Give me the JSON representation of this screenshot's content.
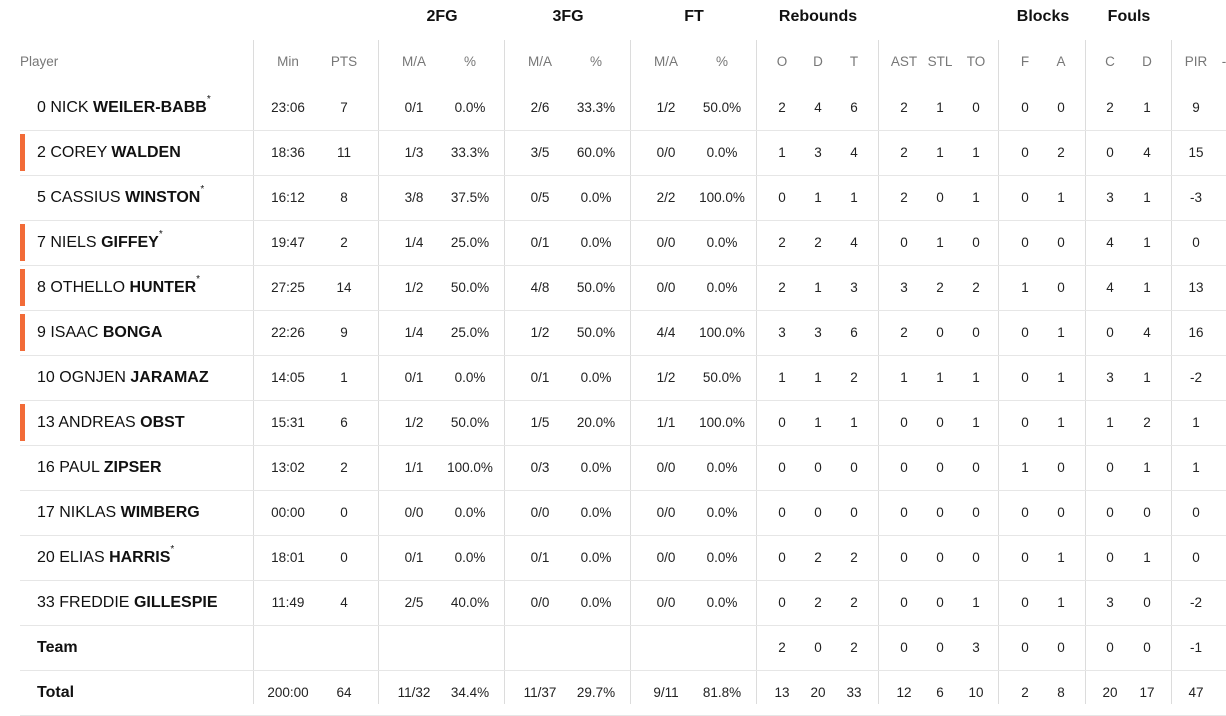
{
  "groups": {
    "fg2": "2FG",
    "fg3": "3FG",
    "ft": "FT",
    "rebounds": "Rebounds",
    "blocks": "Blocks",
    "fouls": "Fouls"
  },
  "headers": {
    "player": "Player",
    "min": "Min",
    "pts": "PTS",
    "fg2_ma": "M/A",
    "fg2_pct": "%",
    "fg3_ma": "M/A",
    "fg3_pct": "%",
    "ft_ma": "M/A",
    "ft_pct": "%",
    "reb_o": "O",
    "reb_d": "D",
    "reb_t": "T",
    "ast": "AST",
    "stl": "STL",
    "to": "TO",
    "blk_f": "F",
    "blk_a": "A",
    "foul_c": "C",
    "foul_d": "D",
    "pir": "PIR",
    "more": "-"
  },
  "accent_color": "#f26b38",
  "players": [
    {
      "num": "0",
      "first": "NICK",
      "last": "WEILER-BABB",
      "star": "*",
      "highlight": false,
      "min": "23:06",
      "pts": "7",
      "fg2_ma": "0/1",
      "fg2_pct": "0.0%",
      "fg3_ma": "2/6",
      "fg3_pct": "33.3%",
      "ft_ma": "1/2",
      "ft_pct": "50.0%",
      "reb_o": "2",
      "reb_d": "4",
      "reb_t": "6",
      "ast": "2",
      "stl": "1",
      "to": "0",
      "blk_f": "0",
      "blk_a": "0",
      "foul_c": "2",
      "foul_d": "1",
      "pir": "9"
    },
    {
      "num": "2",
      "first": "COREY",
      "last": "WALDEN",
      "star": "",
      "highlight": true,
      "min": "18:36",
      "pts": "11",
      "fg2_ma": "1/3",
      "fg2_pct": "33.3%",
      "fg3_ma": "3/5",
      "fg3_pct": "60.0%",
      "ft_ma": "0/0",
      "ft_pct": "0.0%",
      "reb_o": "1",
      "reb_d": "3",
      "reb_t": "4",
      "ast": "2",
      "stl": "1",
      "to": "1",
      "blk_f": "0",
      "blk_a": "2",
      "foul_c": "0",
      "foul_d": "4",
      "pir": "15"
    },
    {
      "num": "5",
      "first": "CASSIUS",
      "last": "WINSTON",
      "star": "*",
      "highlight": false,
      "min": "16:12",
      "pts": "8",
      "fg2_ma": "3/8",
      "fg2_pct": "37.5%",
      "fg3_ma": "0/5",
      "fg3_pct": "0.0%",
      "ft_ma": "2/2",
      "ft_pct": "100.0%",
      "reb_o": "0",
      "reb_d": "1",
      "reb_t": "1",
      "ast": "2",
      "stl": "0",
      "to": "1",
      "blk_f": "0",
      "blk_a": "1",
      "foul_c": "3",
      "foul_d": "1",
      "pir": "-3"
    },
    {
      "num": "7",
      "first": "NIELS",
      "last": "GIFFEY",
      "star": "*",
      "highlight": true,
      "min": "19:47",
      "pts": "2",
      "fg2_ma": "1/4",
      "fg2_pct": "25.0%",
      "fg3_ma": "0/1",
      "fg3_pct": "0.0%",
      "ft_ma": "0/0",
      "ft_pct": "0.0%",
      "reb_o": "2",
      "reb_d": "2",
      "reb_t": "4",
      "ast": "0",
      "stl": "1",
      "to": "0",
      "blk_f": "0",
      "blk_a": "0",
      "foul_c": "4",
      "foul_d": "1",
      "pir": "0"
    },
    {
      "num": "8",
      "first": "OTHELLO",
      "last": "HUNTER",
      "star": "*",
      "highlight": true,
      "min": "27:25",
      "pts": "14",
      "fg2_ma": "1/2",
      "fg2_pct": "50.0%",
      "fg3_ma": "4/8",
      "fg3_pct": "50.0%",
      "ft_ma": "0/0",
      "ft_pct": "0.0%",
      "reb_o": "2",
      "reb_d": "1",
      "reb_t": "3",
      "ast": "3",
      "stl": "2",
      "to": "2",
      "blk_f": "1",
      "blk_a": "0",
      "foul_c": "4",
      "foul_d": "1",
      "pir": "13"
    },
    {
      "num": "9",
      "first": "ISAAC",
      "last": "BONGA",
      "star": "",
      "highlight": true,
      "min": "22:26",
      "pts": "9",
      "fg2_ma": "1/4",
      "fg2_pct": "25.0%",
      "fg3_ma": "1/2",
      "fg3_pct": "50.0%",
      "ft_ma": "4/4",
      "ft_pct": "100.0%",
      "reb_o": "3",
      "reb_d": "3",
      "reb_t": "6",
      "ast": "2",
      "stl": "0",
      "to": "0",
      "blk_f": "0",
      "blk_a": "1",
      "foul_c": "0",
      "foul_d": "4",
      "pir": "16"
    },
    {
      "num": "10",
      "first": "OGNJEN",
      "last": "JARAMAZ",
      "star": "",
      "highlight": false,
      "min": "14:05",
      "pts": "1",
      "fg2_ma": "0/1",
      "fg2_pct": "0.0%",
      "fg3_ma": "0/1",
      "fg3_pct": "0.0%",
      "ft_ma": "1/2",
      "ft_pct": "50.0%",
      "reb_o": "1",
      "reb_d": "1",
      "reb_t": "2",
      "ast": "1",
      "stl": "1",
      "to": "1",
      "blk_f": "0",
      "blk_a": "1",
      "foul_c": "3",
      "foul_d": "1",
      "pir": "-2"
    },
    {
      "num": "13",
      "first": "ANDREAS",
      "last": "OBST",
      "star": "",
      "highlight": true,
      "min": "15:31",
      "pts": "6",
      "fg2_ma": "1/2",
      "fg2_pct": "50.0%",
      "fg3_ma": "1/5",
      "fg3_pct": "20.0%",
      "ft_ma": "1/1",
      "ft_pct": "100.0%",
      "reb_o": "0",
      "reb_d": "1",
      "reb_t": "1",
      "ast": "0",
      "stl": "0",
      "to": "1",
      "blk_f": "0",
      "blk_a": "1",
      "foul_c": "1",
      "foul_d": "2",
      "pir": "1"
    },
    {
      "num": "16",
      "first": "PAUL",
      "last": "ZIPSER",
      "star": "",
      "highlight": false,
      "min": "13:02",
      "pts": "2",
      "fg2_ma": "1/1",
      "fg2_pct": "100.0%",
      "fg3_ma": "0/3",
      "fg3_pct": "0.0%",
      "ft_ma": "0/0",
      "ft_pct": "0.0%",
      "reb_o": "0",
      "reb_d": "0",
      "reb_t": "0",
      "ast": "0",
      "stl": "0",
      "to": "0",
      "blk_f": "1",
      "blk_a": "0",
      "foul_c": "0",
      "foul_d": "1",
      "pir": "1"
    },
    {
      "num": "17",
      "first": "NIKLAS",
      "last": "WIMBERG",
      "star": "",
      "highlight": false,
      "min": "00:00",
      "pts": "0",
      "fg2_ma": "0/0",
      "fg2_pct": "0.0%",
      "fg3_ma": "0/0",
      "fg3_pct": "0.0%",
      "ft_ma": "0/0",
      "ft_pct": "0.0%",
      "reb_o": "0",
      "reb_d": "0",
      "reb_t": "0",
      "ast": "0",
      "stl": "0",
      "to": "0",
      "blk_f": "0",
      "blk_a": "0",
      "foul_c": "0",
      "foul_d": "0",
      "pir": "0"
    },
    {
      "num": "20",
      "first": "ELIAS",
      "last": "HARRIS",
      "star": "*",
      "highlight": false,
      "min": "18:01",
      "pts": "0",
      "fg2_ma": "0/1",
      "fg2_pct": "0.0%",
      "fg3_ma": "0/1",
      "fg3_pct": "0.0%",
      "ft_ma": "0/0",
      "ft_pct": "0.0%",
      "reb_o": "0",
      "reb_d": "2",
      "reb_t": "2",
      "ast": "0",
      "stl": "0",
      "to": "0",
      "blk_f": "0",
      "blk_a": "1",
      "foul_c": "0",
      "foul_d": "1",
      "pir": "0"
    },
    {
      "num": "33",
      "first": "FREDDIE",
      "last": "GILLESPIE",
      "star": "",
      "highlight": false,
      "min": "11:49",
      "pts": "4",
      "fg2_ma": "2/5",
      "fg2_pct": "40.0%",
      "fg3_ma": "0/0",
      "fg3_pct": "0.0%",
      "ft_ma": "0/0",
      "ft_pct": "0.0%",
      "reb_o": "0",
      "reb_d": "2",
      "reb_t": "2",
      "ast": "0",
      "stl": "0",
      "to": "1",
      "blk_f": "0",
      "blk_a": "1",
      "foul_c": "3",
      "foul_d": "0",
      "pir": "-2"
    }
  ],
  "team": {
    "label": "Team",
    "min": "",
    "pts": "",
    "fg2_ma": "",
    "fg2_pct": "",
    "fg3_ma": "",
    "fg3_pct": "",
    "ft_ma": "",
    "ft_pct": "",
    "reb_o": "2",
    "reb_d": "0",
    "reb_t": "2",
    "ast": "0",
    "stl": "0",
    "to": "3",
    "blk_f": "0",
    "blk_a": "0",
    "foul_c": "0",
    "foul_d": "0",
    "pir": "-1"
  },
  "total": {
    "label": "Total",
    "min": "200:00",
    "pts": "64",
    "fg2_ma": "11/32",
    "fg2_pct": "34.4%",
    "fg3_ma": "11/37",
    "fg3_pct": "29.7%",
    "ft_ma": "9/11",
    "ft_pct": "81.8%",
    "reb_o": "13",
    "reb_d": "20",
    "reb_t": "33",
    "ast": "12",
    "stl": "6",
    "to": "10",
    "blk_f": "2",
    "blk_a": "8",
    "foul_c": "20",
    "foul_d": "17",
    "pir": "47"
  }
}
